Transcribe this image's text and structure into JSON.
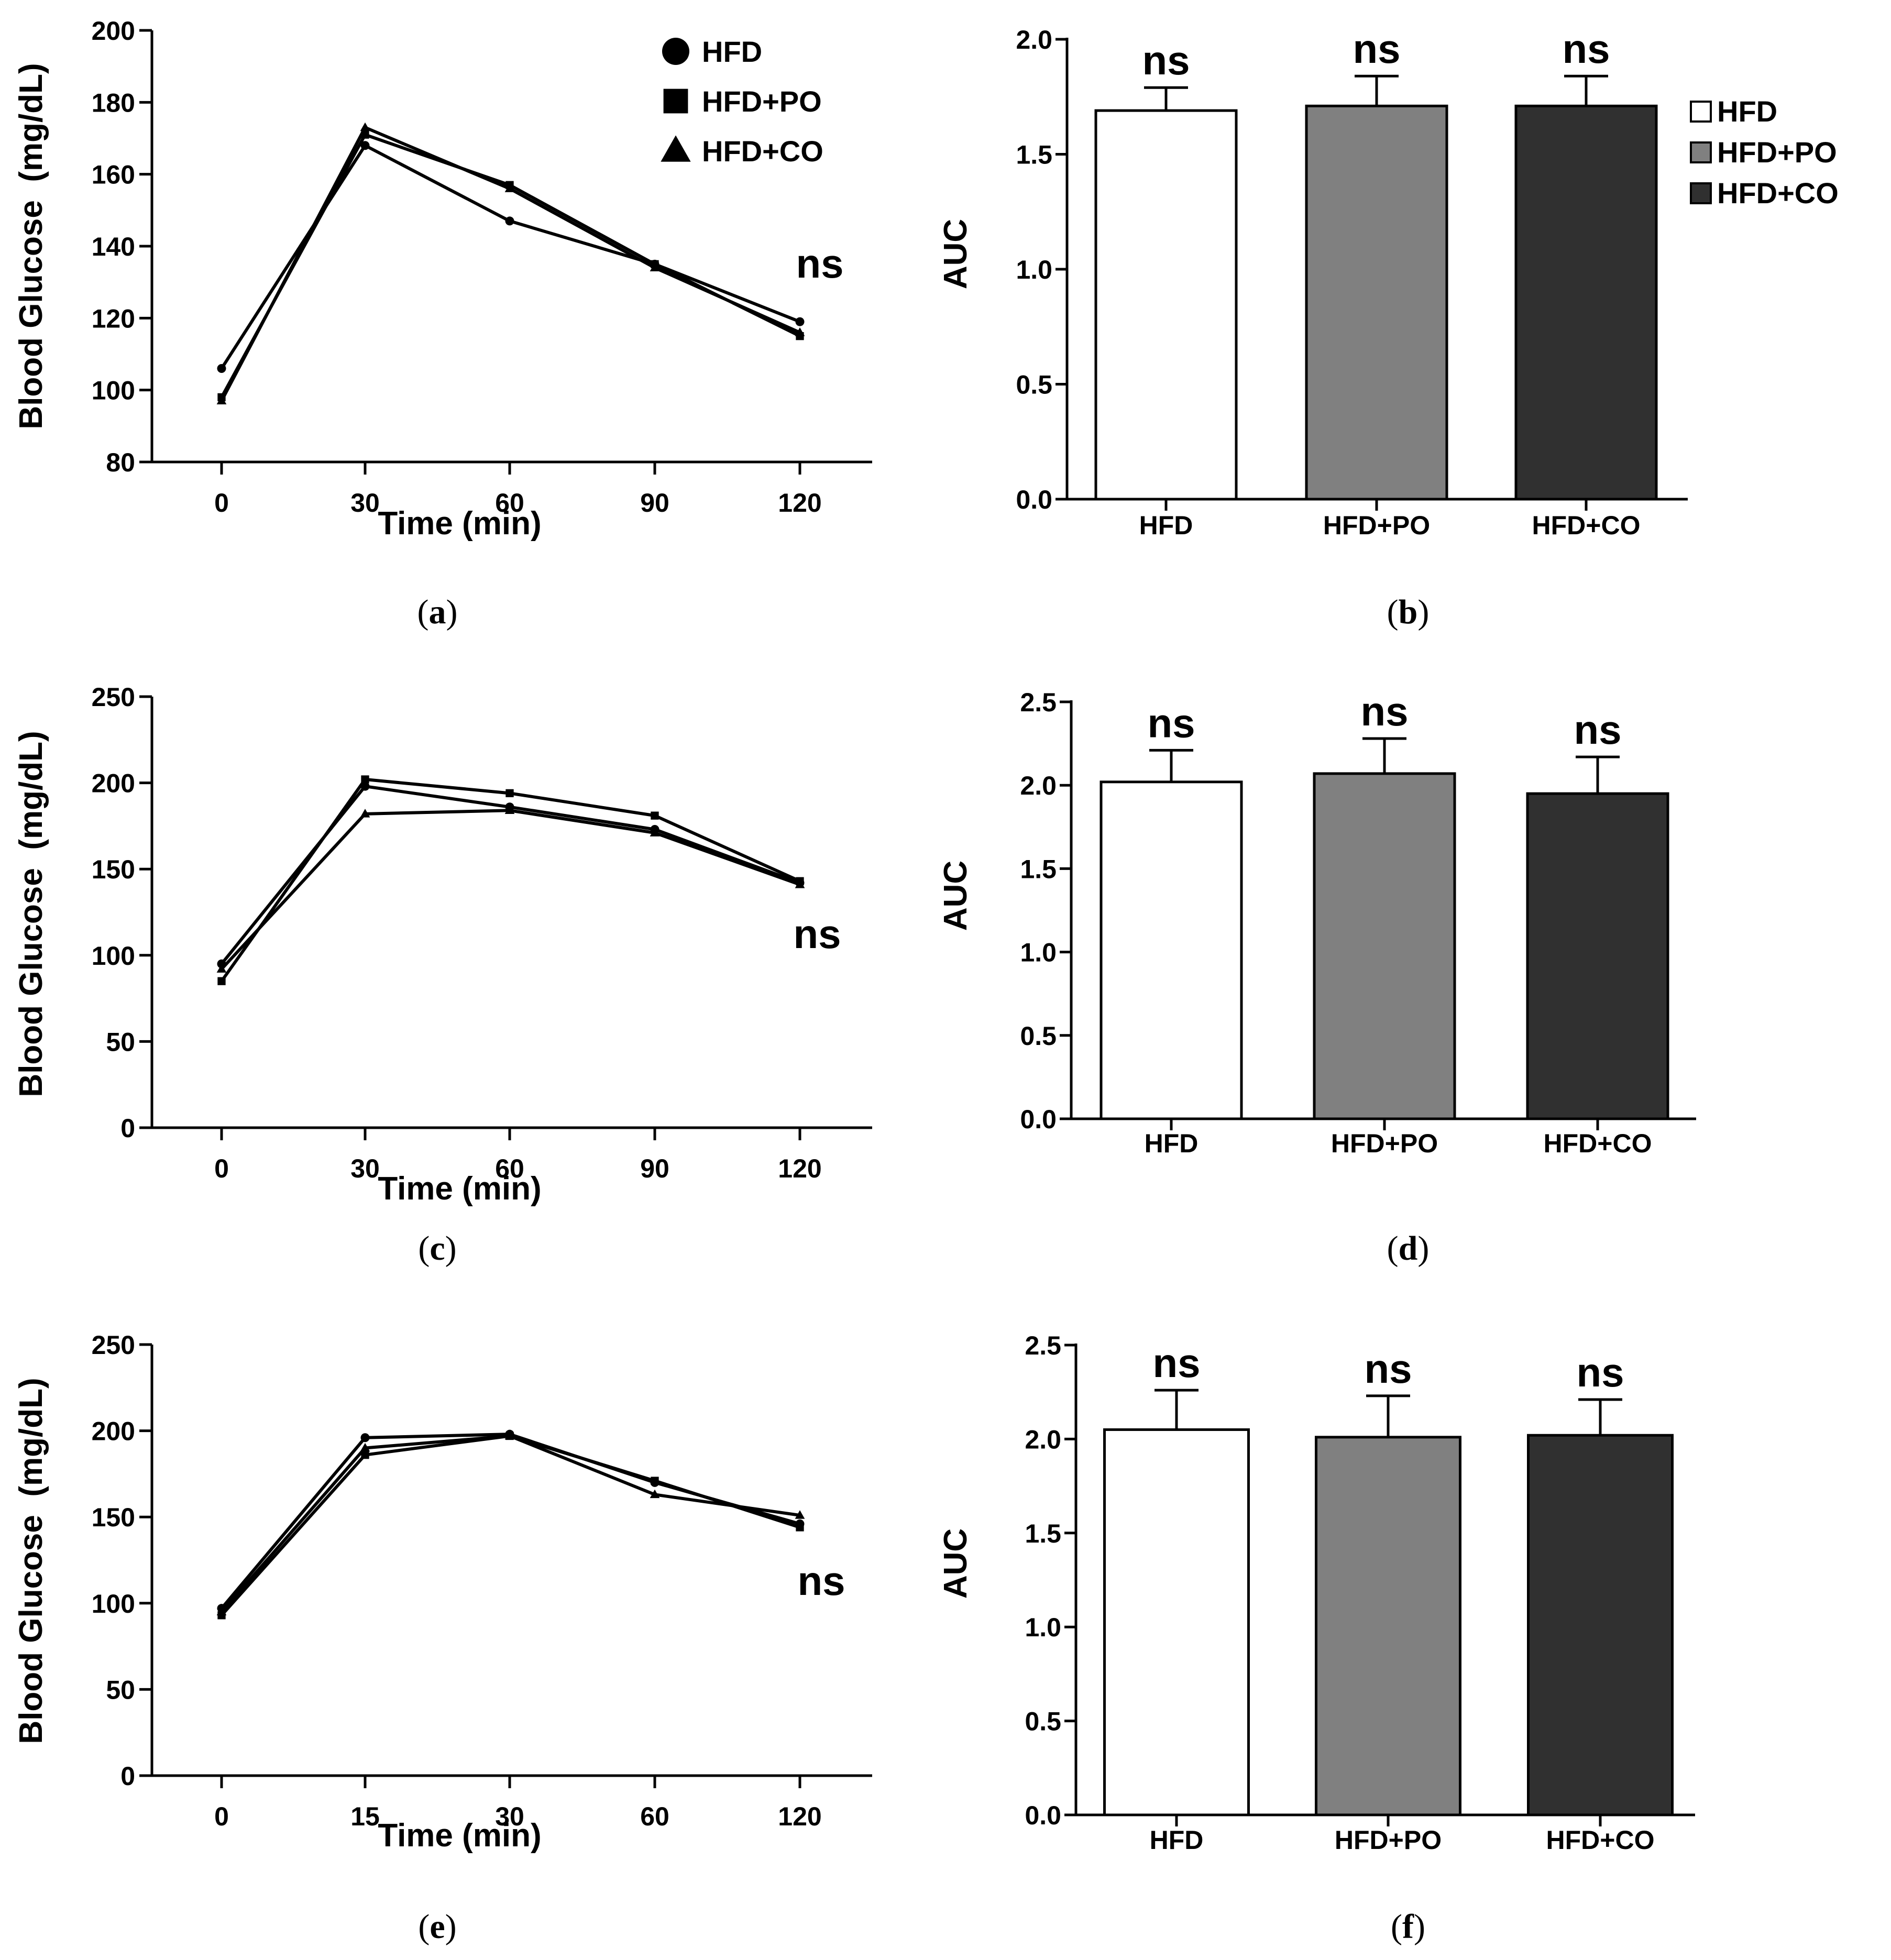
{
  "chart_data": [
    {
      "id": "a",
      "type": "line",
      "panel_label_open": "(",
      "panel_label_letter": "a",
      "panel_label_close": ")",
      "xlabel": "Time (min)",
      "ylabel": "Blood Glucose  (mg/dL)",
      "categories": [
        "0",
        "30",
        "60",
        "90",
        "120"
      ],
      "yticks": [
        "80",
        "100",
        "120",
        "140",
        "160",
        "180",
        "200"
      ],
      "ylim": [
        80,
        200
      ],
      "series": [
        {
          "name": "HFD",
          "marker": "circle",
          "values": [
            106,
            168,
            147,
            135,
            119
          ]
        },
        {
          "name": "HFD+PO",
          "marker": "square",
          "values": [
            98,
            171,
            157,
            135,
            115
          ]
        },
        {
          "name": "HFD+CO",
          "marker": "triangle",
          "values": [
            97,
            173,
            156,
            134,
            116
          ]
        }
      ],
      "legend": [
        {
          "label": "HFD",
          "marker": "circle"
        },
        {
          "label": "HFD+PO",
          "marker": "square"
        },
        {
          "label": "HFD+CO",
          "marker": "triangle"
        }
      ],
      "legend_position": "top-right",
      "annotation": "ns"
    },
    {
      "id": "b",
      "type": "bar",
      "panel_label_open": "(",
      "panel_label_letter": "b",
      "panel_label_close": ")",
      "ylabel": "AUC",
      "categories": [
        "HFD",
        "HFD+PO",
        "HFD+CO"
      ],
      "values": [
        1.69,
        1.71,
        1.71
      ],
      "errors": [
        0.1,
        0.13,
        0.13
      ],
      "colors": [
        "#ffffff",
        "#808080",
        "#303030"
      ],
      "yticks": [
        "0.0",
        "0.5",
        "1.0",
        "1.5",
        "2.0"
      ],
      "ylim": [
        0,
        2.0
      ],
      "annotations": [
        "ns",
        "ns",
        "ns"
      ],
      "legend": [
        {
          "label": "HFD",
          "color": "#ffffff"
        },
        {
          "label": "HFD+PO",
          "color": "#808080"
        },
        {
          "label": "HFD+CO",
          "color": "#303030"
        }
      ],
      "legend_position": "right"
    },
    {
      "id": "c",
      "type": "line",
      "panel_label_open": "(",
      "panel_label_letter": "c",
      "panel_label_close": ")",
      "xlabel": "Time (min)",
      "ylabel": "Blood Glucose  (mg/dL)",
      "categories": [
        "0",
        "30",
        "60",
        "90",
        "120"
      ],
      "yticks": [
        "0",
        "50",
        "100",
        "150",
        "200",
        "250"
      ],
      "ylim": [
        0,
        250
      ],
      "series": [
        {
          "name": "HFD",
          "marker": "circle",
          "values": [
            95,
            198,
            186,
            173,
            142
          ]
        },
        {
          "name": "HFD+PO",
          "marker": "square",
          "values": [
            85,
            202,
            194,
            181,
            143
          ]
        },
        {
          "name": "HFD+CO",
          "marker": "triangle",
          "values": [
            92,
            182,
            184,
            171,
            141
          ]
        }
      ],
      "annotation": "ns"
    },
    {
      "id": "d",
      "type": "bar",
      "panel_label_open": "(",
      "panel_label_letter": "d",
      "panel_label_close": ")",
      "ylabel": "AUC",
      "categories": [
        "HFD",
        "HFD+PO",
        "HFD+CO"
      ],
      "values": [
        2.02,
        2.07,
        1.95
      ],
      "errors": [
        0.19,
        0.21,
        0.22
      ],
      "colors": [
        "#ffffff",
        "#808080",
        "#303030"
      ],
      "yticks": [
        "0.0",
        "0.5",
        "1.0",
        "1.5",
        "2.0",
        "2.5"
      ],
      "ylim": [
        0,
        2.5
      ],
      "annotations": [
        "ns",
        "ns",
        "ns"
      ]
    },
    {
      "id": "e",
      "type": "line",
      "panel_label_open": "(",
      "panel_label_letter": "e",
      "panel_label_close": ")",
      "xlabel": "Time (min)",
      "ylabel": "Blood Glucose  (mg/dL)",
      "categories": [
        "0",
        "15",
        "30",
        "60",
        "120"
      ],
      "yticks": [
        "0",
        "50",
        "100",
        "150",
        "200",
        "250"
      ],
      "ylim": [
        0,
        250
      ],
      "series": [
        {
          "name": "HFD",
          "marker": "circle",
          "values": [
            97,
            196,
            198,
            170,
            146
          ]
        },
        {
          "name": "HFD+PO",
          "marker": "square",
          "values": [
            93,
            186,
            197,
            171,
            144
          ]
        },
        {
          "name": "HFD+CO",
          "marker": "triangle",
          "values": [
            95,
            190,
            197,
            163,
            151
          ]
        }
      ],
      "annotation": "ns"
    },
    {
      "id": "f",
      "type": "bar",
      "panel_label_open": "(",
      "panel_label_letter": "f",
      "panel_label_close": ")",
      "ylabel": "AUC",
      "categories": [
        "HFD",
        "HFD+PO",
        "HFD+CO"
      ],
      "values": [
        2.05,
        2.01,
        2.02
      ],
      "errors": [
        0.21,
        0.22,
        0.19
      ],
      "colors": [
        "#ffffff",
        "#808080",
        "#303030"
      ],
      "yticks": [
        "0.0",
        "0.5",
        "1.0",
        "1.5",
        "2.0",
        "2.5"
      ],
      "ylim": [
        0,
        2.5
      ],
      "annotations": [
        "ns",
        "ns",
        "ns"
      ]
    }
  ]
}
